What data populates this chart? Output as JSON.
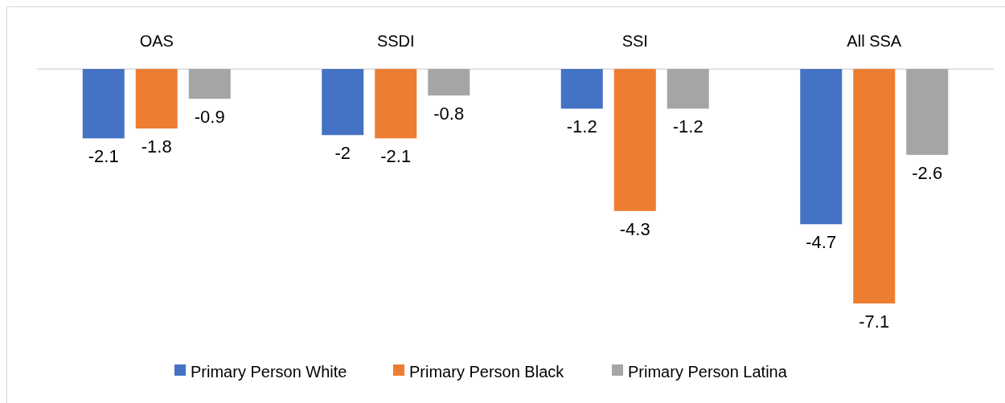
{
  "chart_data": {
    "type": "bar",
    "categories": [
      "OAS",
      "SSDI",
      "SSI",
      "All SSA"
    ],
    "series": [
      {
        "name": "Primary Person White",
        "color": "#4472c4",
        "values": [
          -2.1,
          -2,
          -1.2,
          -4.7
        ]
      },
      {
        "name": "Primary Person Black",
        "color": "#ed7d31",
        "values": [
          -1.8,
          -2.1,
          -4.3,
          -7.1
        ]
      },
      {
        "name": "Primary Person Latina",
        "color": "#a5a5a5",
        "values": [
          -0.9,
          -0.8,
          -1.2,
          -2.6
        ]
      }
    ],
    "data_labels": true,
    "legend": "bottom"
  }
}
